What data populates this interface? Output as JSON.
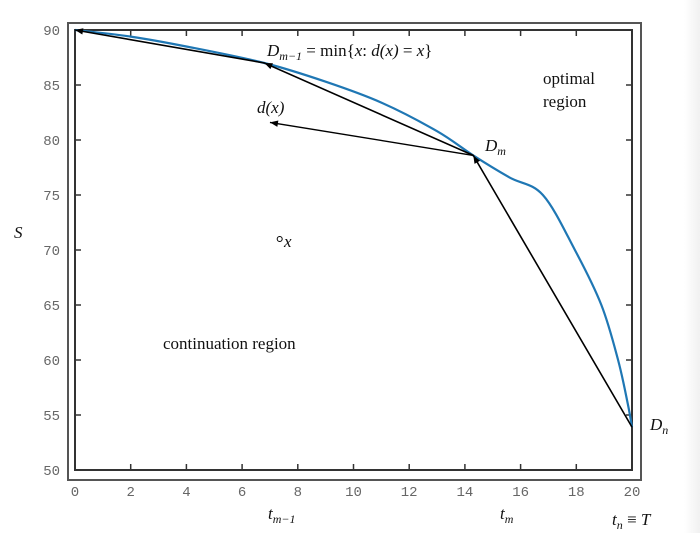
{
  "chart_data": {
    "type": "line",
    "xlim": [
      0,
      20
    ],
    "ylim": [
      50,
      90
    ],
    "ylabel": "S",
    "x_ticks": [
      "0",
      "2",
      "4",
      "6",
      "8",
      "10",
      "12",
      "14",
      "16",
      "18",
      "20"
    ],
    "y_ticks": [
      "50",
      "55",
      "60",
      "65",
      "70",
      "75",
      "80",
      "85",
      "90"
    ],
    "boundary_curve": {
      "color": "#1f77b4",
      "points": [
        [
          0,
          90
        ],
        [
          2,
          89.4
        ],
        [
          4,
          88.5
        ],
        [
          6.8,
          87.0
        ],
        [
          9,
          85.3
        ],
        [
          11,
          83.4
        ],
        [
          13,
          80.8
        ],
        [
          14.3,
          78.6
        ],
        [
          15.6,
          76.6
        ],
        [
          16.8,
          75.0
        ],
        [
          17.95,
          70.0
        ],
        [
          18.9,
          65.0
        ],
        [
          19.5,
          60.0
        ],
        [
          19.85,
          56.0
        ],
        [
          20,
          53.9
        ]
      ]
    },
    "polyline": {
      "color": "#000000",
      "points": [
        [
          0,
          90
        ],
        [
          6.8,
          87.0
        ],
        [
          14.3,
          78.6
        ],
        [
          20,
          53.9
        ]
      ]
    },
    "arrow_dx": {
      "from": [
        14.3,
        78.6
      ],
      "to": [
        7.0,
        81.6
      ]
    },
    "point_x": [
      7.35,
      71.0
    ],
    "annotations": {
      "dm1_main": "D",
      "dm1_sub": "m−1",
      "dm1_rest": " = min{",
      "dm1_x": "x",
      "dm1_colon": ": ",
      "dm1_d": "d(x)",
      "dm1_eq": " = ",
      "dm1_x2": "x",
      "dm1_close": "}",
      "optimal_1": "optimal",
      "optimal_2": "region",
      "dx": "d(x)",
      "dm_main": "D",
      "dm_sub": "m",
      "point_label": "x",
      "continuation": "continuation region",
      "dn_main": "D",
      "dn_sub": "n",
      "tm1_main": "t",
      "tm1_sub": "m−1",
      "tm_main": "t",
      "tm_sub": "m",
      "tn_main": "t",
      "tn_sub": "n",
      "tn_rest": " ≡ ",
      "tn_T": "T"
    }
  }
}
